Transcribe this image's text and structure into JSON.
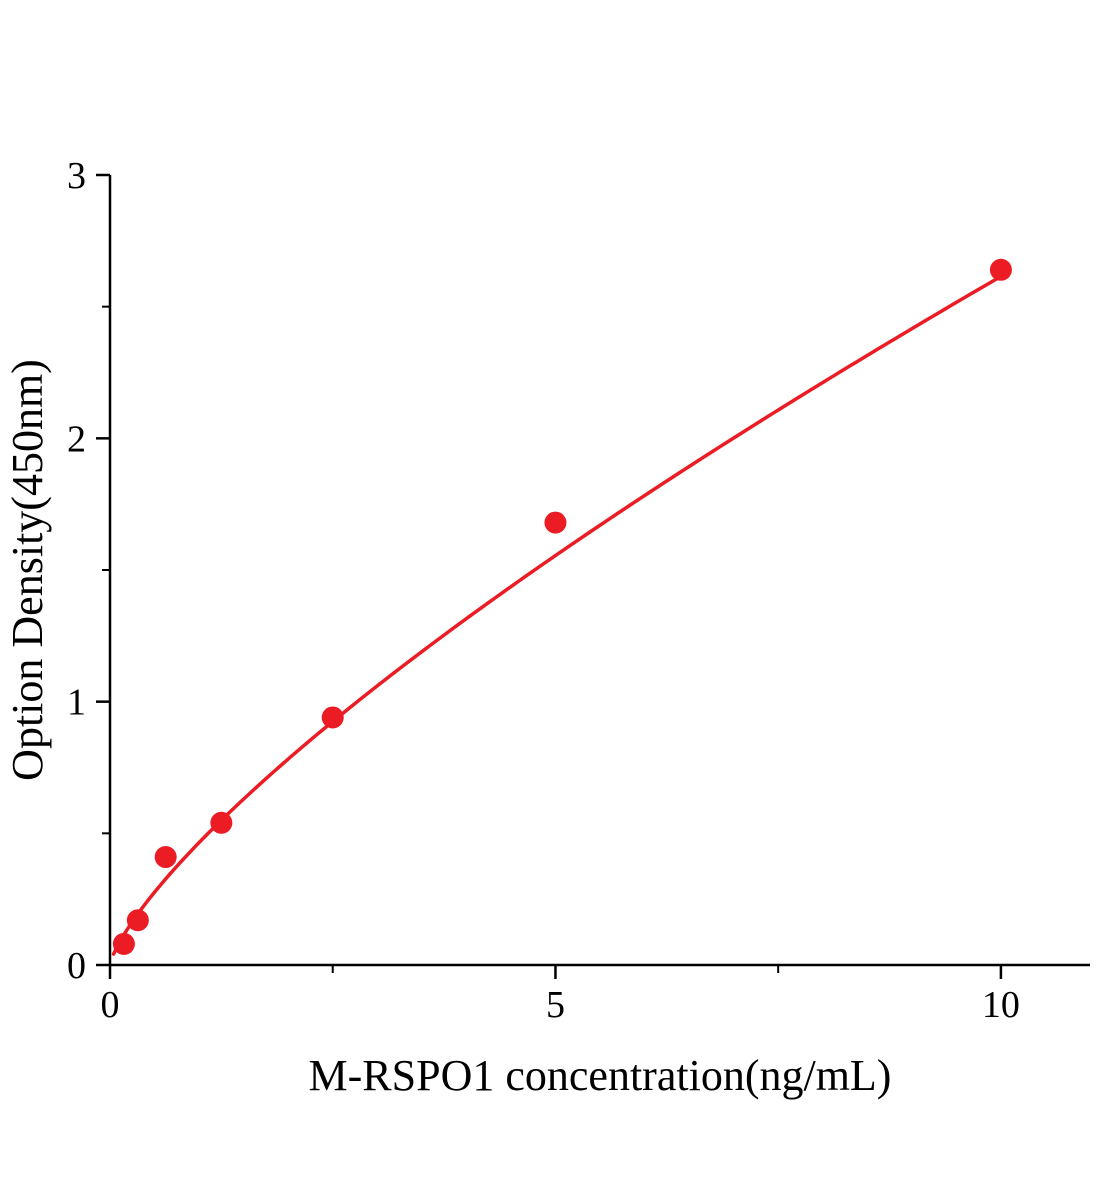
{
  "figure": {
    "background": "#ffffff",
    "axis_color": "#000000",
    "accent_color": "#ec1c24"
  },
  "chart_data": {
    "type": "scatter",
    "title": "",
    "xlabel": "M-RSPO1 concentration(ng/mL)",
    "ylabel": "Option Density(450nm)",
    "xlim": [
      0,
      11
    ],
    "ylim": [
      0,
      3
    ],
    "x_major_ticks": [
      0,
      5,
      10
    ],
    "x_minor_ticks": [
      2.5,
      7.5
    ],
    "y_major_ticks": [
      0,
      1,
      2,
      3
    ],
    "y_minor_ticks": [
      0.5,
      1.5,
      2.5
    ],
    "grid": false,
    "legend": false,
    "series": [
      {
        "name": "standard-points",
        "type": "scatter",
        "color": "#ec1c24",
        "marker": "circle",
        "marker_radius": 11,
        "x": [
          0.156,
          0.3125,
          0.625,
          1.25,
          2.5,
          5,
          10
        ],
        "y": [
          0.08,
          0.17,
          0.41,
          0.54,
          0.94,
          1.68,
          2.64
        ]
      },
      {
        "name": "fit-curve",
        "type": "line",
        "color": "#ec1c24",
        "line_width": 3.5,
        "fit": {
          "model": "power",
          "a": 0.465,
          "b": 0.75,
          "x_start": 0.04,
          "x_end": 10
        }
      }
    ]
  }
}
